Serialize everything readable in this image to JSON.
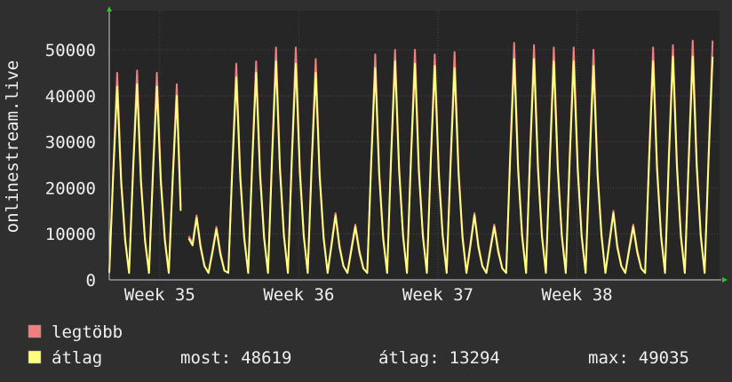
{
  "chart_data": {
    "type": "line",
    "ylabel": "onlinestream.live",
    "x": [
      0,
      0.2,
      0.4,
      0.6,
      0.8,
      1,
      1.2,
      1.4,
      1.6,
      1.8,
      2,
      2.2,
      2.4,
      2.6,
      2.8,
      3,
      3.2,
      3.4,
      3.6,
      3.8,
      4,
      4.2,
      4.4,
      4.6,
      4.8,
      5,
      5.2,
      5.4,
      5.6,
      5.8,
      6,
      6.2,
      6.4,
      6.6,
      6.8,
      7,
      7.2,
      7.4,
      7.6,
      7.8,
      8,
      8.2,
      8.4,
      8.6,
      8.8,
      9,
      9.2,
      9.4,
      9.6,
      9.8,
      10,
      10.2,
      10.4,
      10.6,
      10.8,
      11,
      11.2,
      11.4,
      11.6,
      11.8,
      12,
      12.2,
      12.4,
      12.6,
      12.8,
      13,
      13.2,
      13.4,
      13.6,
      13.8,
      14,
      14.2,
      14.4,
      14.6,
      14.8,
      15,
      15.2,
      15.4,
      15.6,
      15.8,
      16,
      16.2,
      16.4,
      16.6,
      16.8,
      17,
      17.2,
      17.4,
      17.6,
      17.8,
      18,
      18.2,
      18.4,
      18.6,
      18.8,
      19,
      19.2,
      19.4,
      19.6,
      19.8,
      20,
      20.2,
      20.4,
      20.6,
      20.8,
      21,
      21.2,
      21.4,
      21.6,
      21.8,
      22,
      22.2,
      22.4,
      22.6,
      22.8,
      23,
      23.2,
      23.4,
      23.6,
      23.8,
      24,
      24.2,
      24.4,
      24.6,
      24.8,
      25,
      25.2,
      25.4,
      25.6,
      25.8,
      26,
      26.2,
      26.4,
      26.6,
      26.8,
      27,
      27.2,
      27.4,
      27.6,
      27.8,
      28,
      28.2,
      28.4,
      28.6,
      28.8,
      29,
      29.2,
      29.4,
      29.6,
      29.8,
      30,
      30.2,
      30.4
    ],
    "series": [
      {
        "name": "legtöbb",
        "color": "#f08080",
        "values": [
          1500,
          24000,
          45000,
          22000,
          9000,
          1500,
          24500,
          45500,
          22000,
          9000,
          1500,
          24000,
          45000,
          22000,
          9000,
          1500,
          23000,
          42500,
          16000,
          null,
          9500,
          8000,
          14000,
          7500,
          3000,
          1500,
          6500,
          11500,
          6000,
          2000,
          1500,
          25000,
          47000,
          23000,
          9500,
          1500,
          26000,
          47500,
          23500,
          9500,
          1500,
          27000,
          50500,
          25000,
          10000,
          1500,
          27000,
          50500,
          24500,
          10000,
          1500,
          26000,
          48000,
          23500,
          9500,
          1500,
          8000,
          14500,
          7500,
          3000,
          1500,
          7000,
          12000,
          6500,
          2500,
          1500,
          26500,
          49000,
          24000,
          9500,
          1500,
          27000,
          50000,
          25000,
          10000,
          1500,
          27000,
          50000,
          24500,
          10000,
          1500,
          26500,
          49000,
          24000,
          10000,
          1500,
          26500,
          49500,
          24000,
          9500,
          1500,
          8000,
          14500,
          7500,
          3000,
          1500,
          7000,
          12000,
          6500,
          2500,
          1500,
          27500,
          51500,
          25000,
          10000,
          1500,
          27500,
          51000,
          25000,
          10000,
          1500,
          27000,
          50500,
          25000,
          10000,
          1500,
          27000,
          50500,
          25000,
          10000,
          1500,
          26500,
          50000,
          24000,
          10000,
          1500,
          8500,
          15000,
          7500,
          3000,
          1500,
          7000,
          12000,
          6500,
          2500,
          1500,
          27000,
          50500,
          25000,
          10000,
          1500,
          27500,
          51000,
          25500,
          10000,
          1500,
          27500,
          52000,
          25500,
          10000,
          1500,
          27500,
          52000
        ]
      },
      {
        "name": "átlag",
        "color": "#ffff80",
        "values": [
          1500,
          23000,
          42000,
          21000,
          8500,
          1500,
          23500,
          42500,
          21000,
          8500,
          1500,
          23000,
          42000,
          21000,
          8500,
          1500,
          22000,
          40000,
          15000,
          null,
          9000,
          7500,
          13500,
          7000,
          3000,
          1500,
          6000,
          11000,
          5500,
          2000,
          1500,
          24000,
          44000,
          22000,
          9000,
          1500,
          25000,
          45000,
          22500,
          9000,
          1500,
          26000,
          47500,
          24000,
          9500,
          1500,
          26000,
          47000,
          23500,
          9500,
          1500,
          25000,
          45000,
          22500,
          9000,
          1500,
          7500,
          14000,
          7000,
          3000,
          1500,
          6500,
          11500,
          6000,
          2500,
          1500,
          25500,
          46000,
          23000,
          9000,
          1500,
          26000,
          47500,
          24000,
          9500,
          1500,
          26000,
          47000,
          23500,
          9500,
          1500,
          25500,
          46500,
          23000,
          9500,
          1500,
          25500,
          46000,
          23000,
          9000,
          1500,
          7500,
          14000,
          7000,
          3000,
          1500,
          6500,
          11500,
          6000,
          2500,
          1500,
          26500,
          48000,
          24000,
          9500,
          1500,
          26500,
          48000,
          24000,
          9500,
          1500,
          26000,
          47500,
          24000,
          9500,
          1500,
          26000,
          47500,
          24000,
          9500,
          1500,
          25500,
          46500,
          23000,
          9500,
          1500,
          8000,
          14500,
          7000,
          3000,
          1500,
          6500,
          11500,
          6000,
          2500,
          1500,
          26000,
          47500,
          24000,
          9500,
          1500,
          26500,
          48500,
          24500,
          9500,
          1500,
          26500,
          48500,
          24500,
          9500,
          1500,
          26500,
          48500
        ]
      }
    ],
    "xlim": [
      0,
      30.75
    ],
    "xticks": [
      {
        "value": 2.54,
        "label": "Week 35"
      },
      {
        "value": 9.55,
        "label": "Week 36"
      },
      {
        "value": 16.56,
        "label": "Week 37"
      },
      {
        "value": 23.57,
        "label": "Week 38"
      }
    ],
    "ylim": [
      0,
      58500
    ],
    "yticks": [
      0,
      10000,
      20000,
      30000,
      40000,
      50000
    ],
    "grid": true,
    "stats": [
      {
        "label": "most:",
        "value": 48619
      },
      {
        "label": "átlag:",
        "value": 13294
      },
      {
        "label": "max:",
        "value": 49035
      }
    ]
  }
}
